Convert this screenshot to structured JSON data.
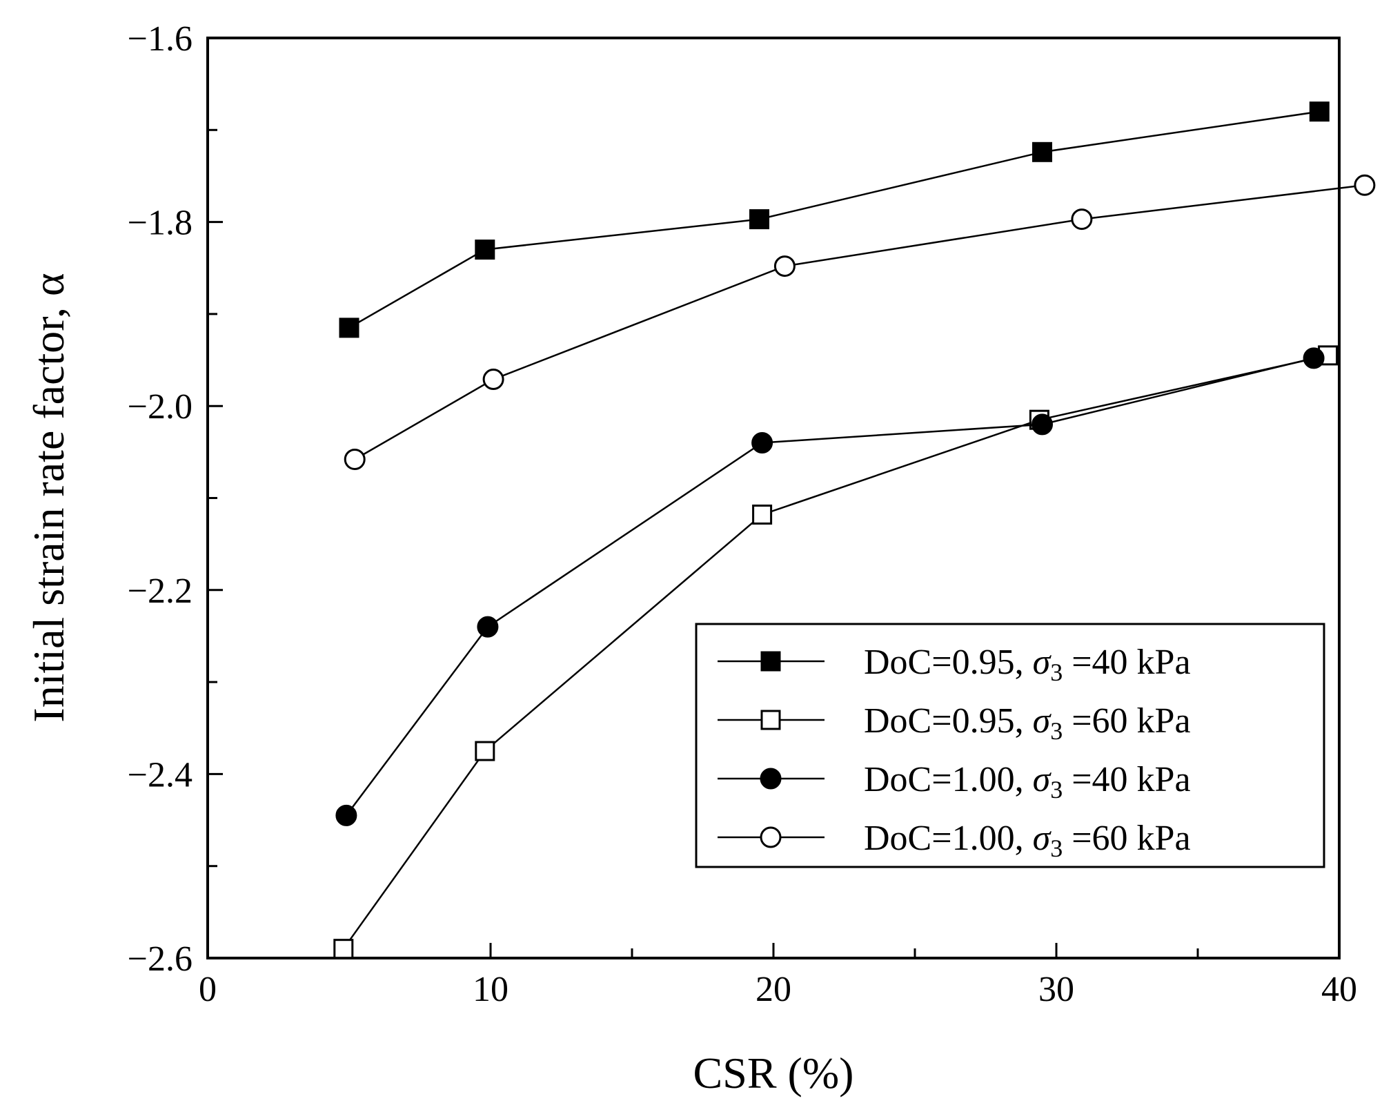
{
  "chart_data": {
    "type": "line",
    "title": "",
    "xlabel": "CSR (%)",
    "ylabel": "Initial strain rate factor, α",
    "xlim": [
      0,
      40
    ],
    "ylim": [
      -2.6,
      -1.6
    ],
    "x_ticks": [
      0,
      10,
      20,
      30,
      40
    ],
    "x_tick_labels": [
      "0",
      "10",
      "20",
      "30",
      "40"
    ],
    "y_ticks": [
      -1.6,
      -1.8,
      -2.0,
      -2.2,
      -2.4,
      -2.6
    ],
    "y_tick_labels": [
      "−1.6",
      "−1.8",
      "−2.0",
      "−2.2",
      "−2.4",
      "−2.6"
    ],
    "grid": false,
    "legend_position": "bottom-right",
    "series": [
      {
        "name": "DoC=0.95, σ3 =40 kPa",
        "label_prefix": "DoC=0.95, ",
        "label_symbol": "σ",
        "label_sub": "3",
        "label_suffix": " =40 kPa",
        "marker": "square-filled",
        "x": [
          5,
          9.8,
          19.5,
          29.5,
          39.3
        ],
        "y": [
          -1.915,
          -1.83,
          -1.797,
          -1.724,
          -1.68
        ]
      },
      {
        "name": "DoC=0.95, σ3 =60 kPa",
        "label_prefix": "DoC=0.95, ",
        "label_symbol": "σ",
        "label_sub": "3",
        "label_suffix": " =60 kPa",
        "marker": "square-open",
        "x": [
          4.8,
          9.8,
          19.6,
          29.4,
          39.6
        ],
        "y": [
          -2.59,
          -2.375,
          -2.118,
          -2.015,
          -1.945
        ]
      },
      {
        "name": "DoC=1.00, σ3 =40 kPa",
        "label_prefix": "DoC=1.00, ",
        "label_symbol": "σ",
        "label_sub": "3",
        "label_suffix": " =40 kPa",
        "marker": "circle-filled",
        "x": [
          4.9,
          9.9,
          19.6,
          29.5,
          39.1
        ],
        "y": [
          -2.445,
          -2.24,
          -2.04,
          -2.02,
          -1.948
        ]
      },
      {
        "name": "DoC=1.00, σ3 =60 kPa",
        "label_prefix": "DoC=1.00, ",
        "label_symbol": "σ",
        "label_sub": "3",
        "label_suffix": " =60 kPa",
        "marker": "circle-open",
        "x": [
          5.2,
          10.1,
          20.4,
          30.9,
          40.9
        ],
        "y": [
          -2.058,
          -1.971,
          -1.848,
          -1.797,
          -1.76
        ]
      }
    ]
  }
}
